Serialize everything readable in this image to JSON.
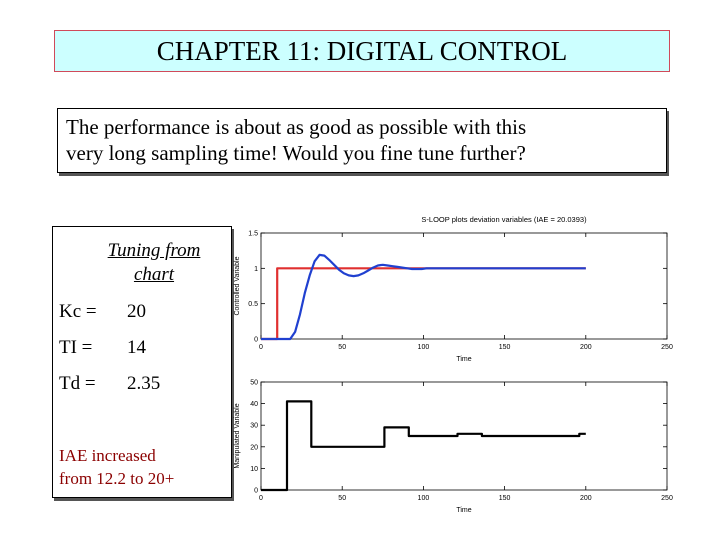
{
  "banner": {
    "title": "CHAPTER 11: DIGITAL CONTROL"
  },
  "note": {
    "line1": "The performance is about as good as possible with this",
    "line2": "very long sampling time!  Would you fine tune further?"
  },
  "tuning_box": {
    "heading_line1": "Tuning from",
    "heading_line2": "chart",
    "params": [
      {
        "name": "Kc  =",
        "value": "20"
      },
      {
        "name": "TI  =",
        "value": "14"
      },
      {
        "name": "Td  =",
        "value": "2.35"
      }
    ],
    "iae_line1": "IAE increased",
    "iae_line2": "from 12.2 to 20+"
  },
  "chart_data": [
    {
      "type": "line",
      "title": "S-LOOP plots deviation variables (IAE = 20.0393)",
      "xlabel": "Time",
      "ylabel": "Controlled Variable",
      "xlim": [
        0,
        250
      ],
      "ylim": [
        0,
        1.5
      ],
      "xticks": [
        0,
        50,
        100,
        150,
        200,
        250
      ],
      "yticks": [
        0,
        0.5,
        1,
        1.5
      ],
      "series": [
        {
          "color": "#e03030",
          "x": [
            0,
            10,
            10,
            200
          ],
          "y": [
            0,
            0,
            1,
            1
          ]
        },
        {
          "color": "#2040d0",
          "x": [
            0,
            18,
            21,
            24,
            27,
            30,
            33,
            36,
            39,
            42,
            45,
            48,
            51,
            54,
            57,
            60,
            63,
            66,
            69,
            72,
            75,
            78,
            81,
            84,
            87,
            90,
            93,
            96,
            99,
            102,
            105,
            110,
            115,
            120,
            125,
            130,
            140,
            150,
            160,
            170,
            180,
            190,
            200
          ],
          "y": [
            0,
            0,
            0.1,
            0.35,
            0.65,
            0.9,
            1.1,
            1.19,
            1.18,
            1.12,
            1.05,
            0.98,
            0.93,
            0.9,
            0.89,
            0.9,
            0.93,
            0.97,
            1.01,
            1.04,
            1.05,
            1.04,
            1.03,
            1.02,
            1.01,
            1.0,
            0.99,
            0.99,
            0.99,
            1.0,
            1.0,
            1.0,
            1.0,
            1.0,
            1.0,
            1.0,
            1.0,
            1.0,
            1.0,
            1.0,
            1.0,
            1.0,
            1.0
          ]
        }
      ]
    },
    {
      "type": "line",
      "xlabel": "Time",
      "ylabel": "Manipulated Variable",
      "xlim": [
        0,
        250
      ],
      "ylim": [
        0,
        50
      ],
      "xticks": [
        0,
        50,
        100,
        150,
        200,
        250
      ],
      "yticks": [
        0,
        10,
        20,
        30,
        40,
        50
      ],
      "series": [
        {
          "color": "#000000",
          "x": [
            0,
            16,
            16,
            31,
            31,
            46,
            46,
            61,
            61,
            76,
            76,
            91,
            91,
            106,
            106,
            121,
            121,
            136,
            136,
            151,
            151,
            166,
            166,
            181,
            181,
            196,
            196,
            200
          ],
          "y": [
            0,
            0,
            41,
            41,
            20,
            20,
            20,
            20,
            20,
            20,
            29,
            29,
            25,
            25,
            25,
            25,
            26,
            26,
            25,
            25,
            25,
            25,
            25,
            25,
            25,
            25,
            26,
            26
          ]
        }
      ]
    }
  ]
}
